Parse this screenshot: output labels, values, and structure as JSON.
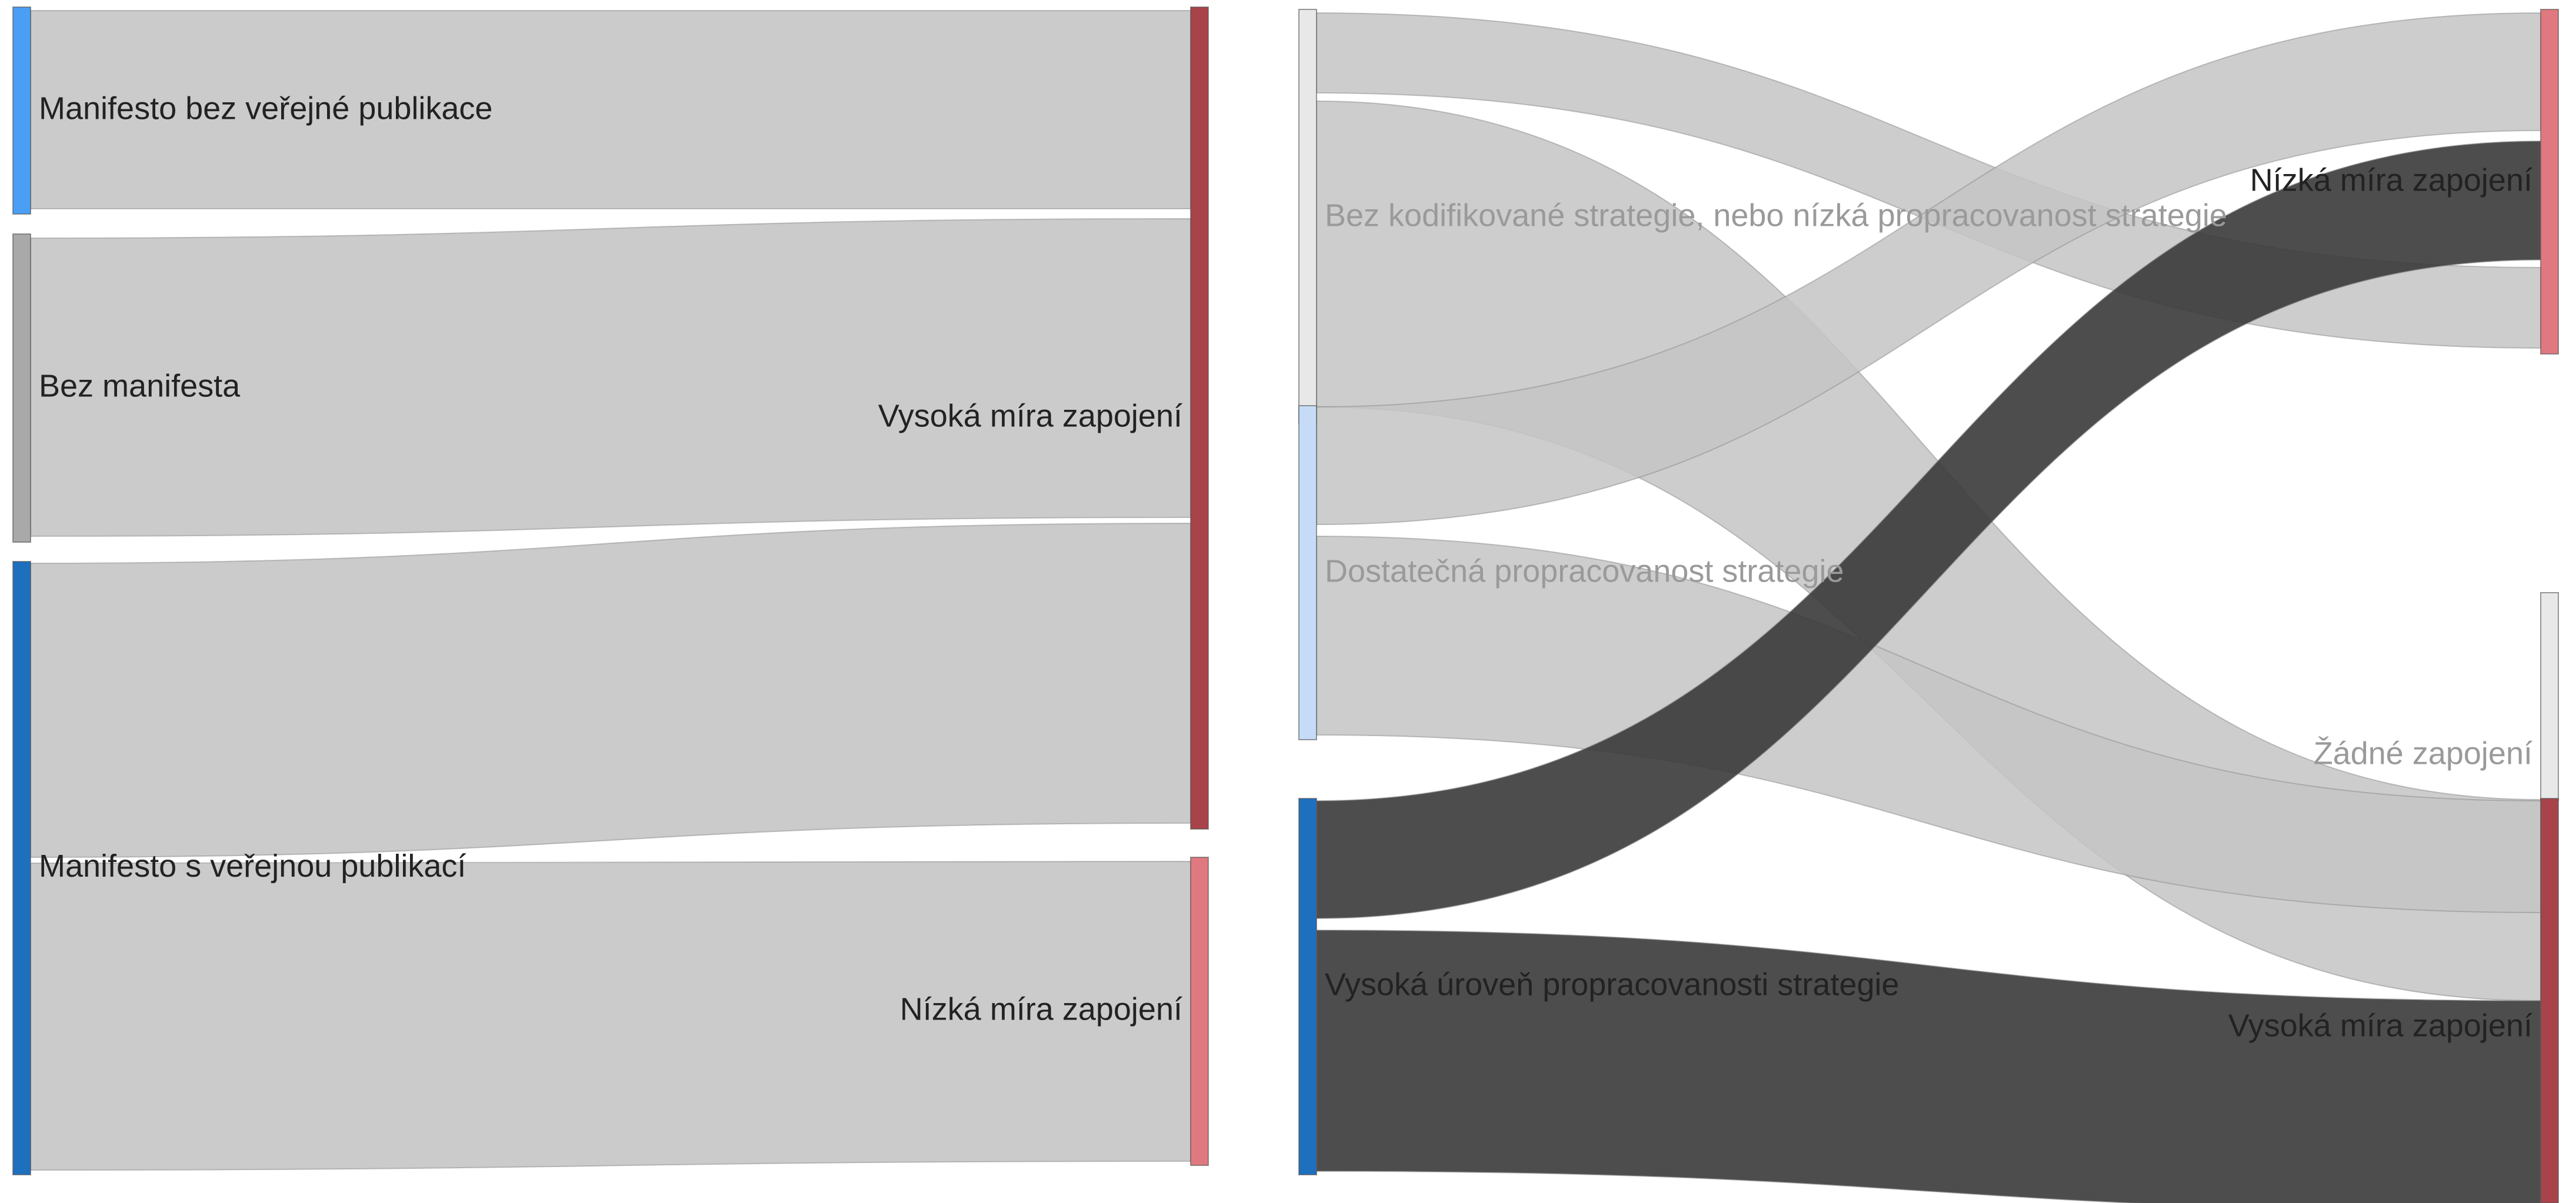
{
  "diagrams": [
    {
      "type": "sankey",
      "nodes": [
        {
          "id": "l_bez_ver",
          "label": "Manifesto bez veřejné publikace",
          "color": "#4a9ff5"
        },
        {
          "id": "l_bez_man",
          "label": "Bez manifesta",
          "color": "#a9a9a9"
        },
        {
          "id": "l_s_ver",
          "label": "Manifesto s veřejnou publikací",
          "color": "#1f6fbf"
        },
        {
          "id": "l_vysoka",
          "label": "Vysoká míra zapojení",
          "color": "#a8434a"
        },
        {
          "id": "l_nizka",
          "label": "Nízká míra zapojení",
          "color": "#e07880"
        }
      ],
      "links": [
        {
          "source": "l_bez_ver",
          "target": "l_vysoka",
          "color": "#cbcbcb"
        },
        {
          "source": "l_bez_man",
          "target": "l_vysoka",
          "color": "#cbcbcb"
        },
        {
          "source": "l_s_ver",
          "target": "l_vysoka",
          "color": "#cbcbcb"
        },
        {
          "source": "l_s_ver",
          "target": "l_nizka",
          "color": "#cbcbcb"
        }
      ]
    },
    {
      "type": "sankey",
      "nodes": [
        {
          "id": "r_bez_kod",
          "label": "Bez kodifikované strategie, nebo nízká propracovanost strategie",
          "color": "#e8e8e8"
        },
        {
          "id": "r_dostat",
          "label": "Dostatečná propracovanost strategie",
          "color": "#c6dcf6"
        },
        {
          "id": "r_vysoka_ur",
          "label": "Vysoká úroveň propracovanosti strategie",
          "color": "#1f6fbf"
        },
        {
          "id": "r_nizka",
          "label": "Nízká míra zapojení",
          "color": "#e07880"
        },
        {
          "id": "r_zadne",
          "label": "Žádné zapojení",
          "color": "#e8e8e8"
        },
        {
          "id": "r_vysoka",
          "label": "Vysoká míra zapojení",
          "color": "#a8434a"
        }
      ],
      "links": [
        {
          "source": "r_bez_kod",
          "target": "r_nizka",
          "color": "#c4c4c4"
        },
        {
          "source": "r_bez_kod",
          "target": "r_vysoka",
          "color": "#c4c4c4"
        },
        {
          "source": "r_dostat",
          "target": "r_nizka",
          "color": "#c4c4c4"
        },
        {
          "source": "r_dostat",
          "target": "r_vysoka",
          "color": "#c4c4c4"
        },
        {
          "source": "r_vysoka_ur",
          "target": "r_nizka",
          "color": "#3a3a3a"
        },
        {
          "source": "r_vysoka_ur",
          "target": "r_vysoka",
          "color": "#3a3a3a"
        }
      ]
    }
  ]
}
